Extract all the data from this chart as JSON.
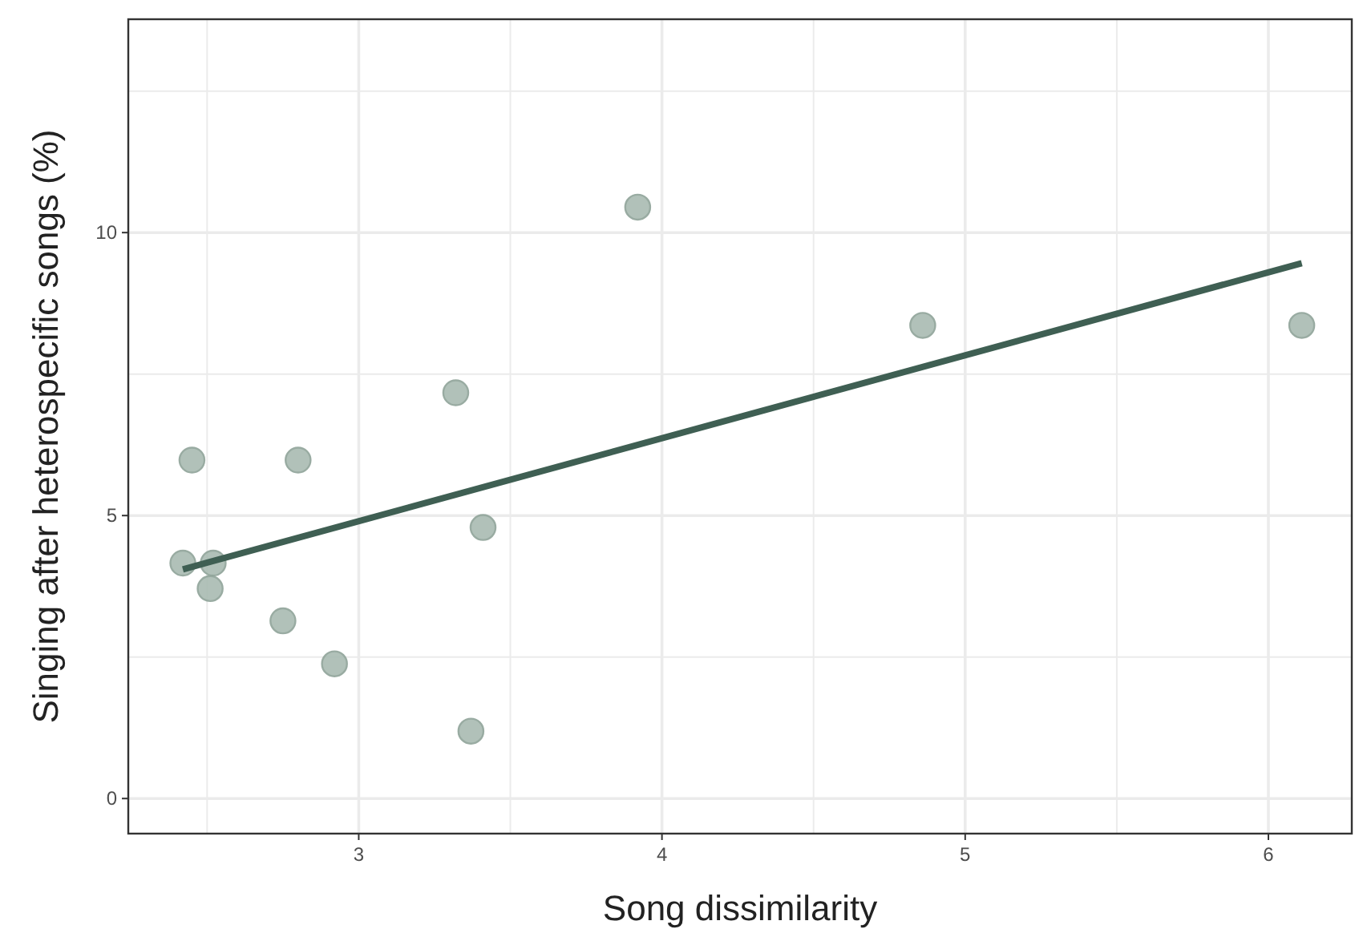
{
  "chart_data": {
    "type": "scatter",
    "xlabel": "Song dissimilarity",
    "ylabel": "Singing after heterospecific songs (%)",
    "xlim": [
      2.24,
      6.275
    ],
    "ylim": [
      -0.62,
      13.77
    ],
    "xticks": [
      {
        "value": 2.5,
        "label": null
      },
      3,
      {
        "value": 3.5,
        "label": null
      },
      4,
      {
        "value": 4.5,
        "label": null
      },
      5,
      {
        "value": 5.5,
        "label": null
      },
      6
    ],
    "yticks": [
      0,
      {
        "value": 2.5,
        "label": null
      },
      5,
      {
        "value": 7.5,
        "label": null
      },
      10,
      {
        "value": 12.5,
        "label": null
      }
    ],
    "grid": true,
    "series": [
      {
        "marker": "circle",
        "color": "#a9bbb2",
        "x": [
          2.42,
          2.45,
          2.52,
          2.51,
          2.75,
          2.8,
          2.92,
          3.32,
          3.37,
          3.41,
          3.92,
          4.86,
          6.11
        ],
        "values": [
          4.16,
          5.98,
          4.16,
          3.71,
          3.14,
          5.98,
          2.38,
          7.17,
          1.19,
          4.79,
          10.45,
          8.36,
          8.36
        ]
      },
      {
        "type": "line",
        "color": "#3f5f53",
        "x": [
          2.42,
          6.11
        ],
        "values": [
          4.05,
          9.46
        ]
      }
    ]
  }
}
